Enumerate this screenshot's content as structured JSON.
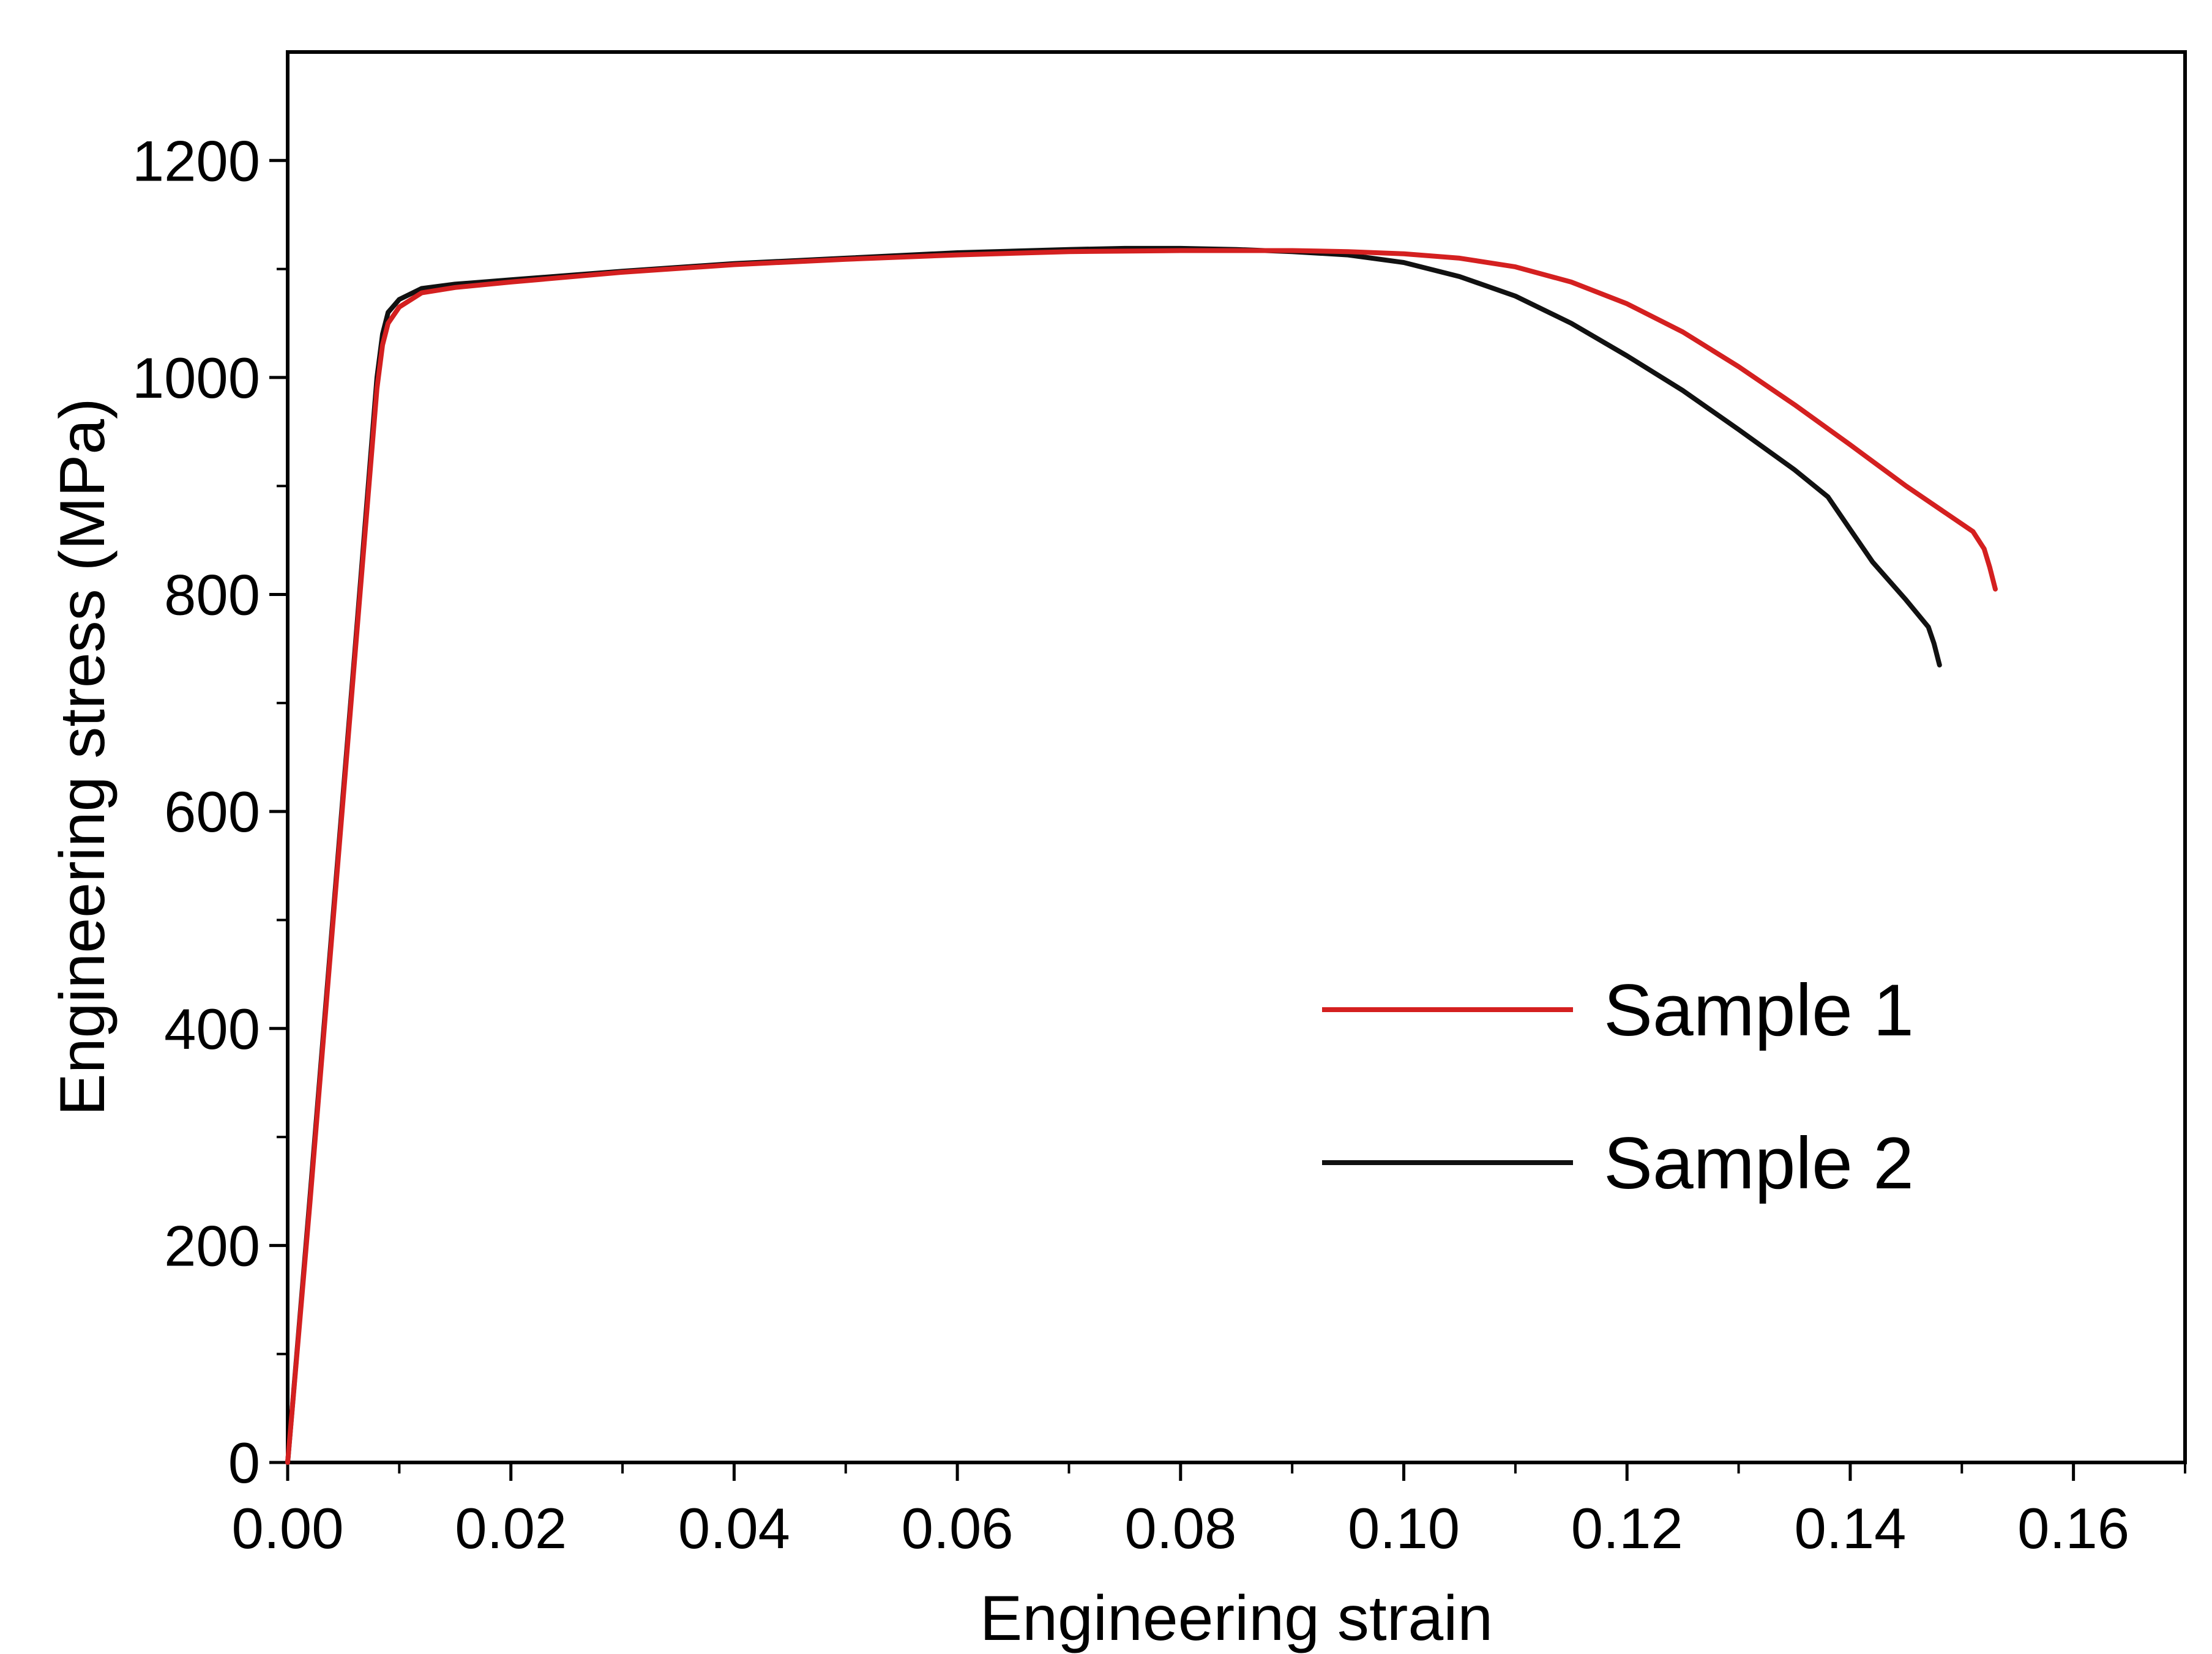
{
  "chart_data": {
    "type": "line",
    "title": "",
    "xlabel": "Engineering strain",
    "ylabel": "Engineering stress (MPa)",
    "xlim": [
      0,
      0.17
    ],
    "ylim": [
      0,
      1300
    ],
    "xticks": [
      0.0,
      0.02,
      0.04,
      0.06,
      0.08,
      0.1,
      0.12,
      0.14,
      0.16
    ],
    "xtick_labels": [
      "0.00",
      "0.02",
      "0.04",
      "0.06",
      "0.08",
      "0.10",
      "0.12",
      "0.14",
      "0.16"
    ],
    "yticks": [
      0,
      200,
      400,
      600,
      800,
      1000,
      1200
    ],
    "ytick_labels": [
      "0",
      "200",
      "400",
      "600",
      "800",
      "1000",
      "1200"
    ],
    "grid": false,
    "legend_position": "lower-right",
    "series": [
      {
        "name": "Sample 1",
        "color": "#d42020",
        "x": [
          0.0,
          0.002,
          0.004,
          0.006,
          0.008,
          0.0085,
          0.009,
          0.01,
          0.012,
          0.015,
          0.02,
          0.03,
          0.04,
          0.05,
          0.06,
          0.07,
          0.08,
          0.09,
          0.095,
          0.1,
          0.105,
          0.11,
          0.115,
          0.12,
          0.125,
          0.13,
          0.135,
          0.14,
          0.145,
          0.15,
          0.151,
          0.152,
          0.1525,
          0.153
        ],
        "y": [
          0,
          240,
          490,
          740,
          990,
          1030,
          1050,
          1065,
          1078,
          1083,
          1088,
          1097,
          1104,
          1109,
          1113,
          1116,
          1117,
          1117,
          1116,
          1114,
          1110,
          1102,
          1088,
          1068,
          1042,
          1010,
          975,
          938,
          900,
          865,
          858,
          842,
          825,
          805
        ]
      },
      {
        "name": "Sample 2",
        "color": "#111111",
        "x": [
          0.0,
          0.002,
          0.004,
          0.006,
          0.008,
          0.0085,
          0.009,
          0.01,
          0.012,
          0.015,
          0.02,
          0.03,
          0.04,
          0.05,
          0.06,
          0.07,
          0.075,
          0.08,
          0.085,
          0.09,
          0.095,
          0.1,
          0.105,
          0.11,
          0.115,
          0.12,
          0.125,
          0.13,
          0.135,
          0.138,
          0.14,
          0.142,
          0.145,
          0.147,
          0.1475,
          0.148
        ],
        "y": [
          0,
          245,
          495,
          745,
          1000,
          1040,
          1060,
          1072,
          1082,
          1086,
          1090,
          1098,
          1105,
          1110,
          1115,
          1118,
          1119,
          1119,
          1118,
          1116,
          1113,
          1106,
          1093,
          1075,
          1050,
          1020,
          988,
          952,
          915,
          890,
          860,
          830,
          795,
          770,
          755,
          735
        ]
      }
    ]
  }
}
